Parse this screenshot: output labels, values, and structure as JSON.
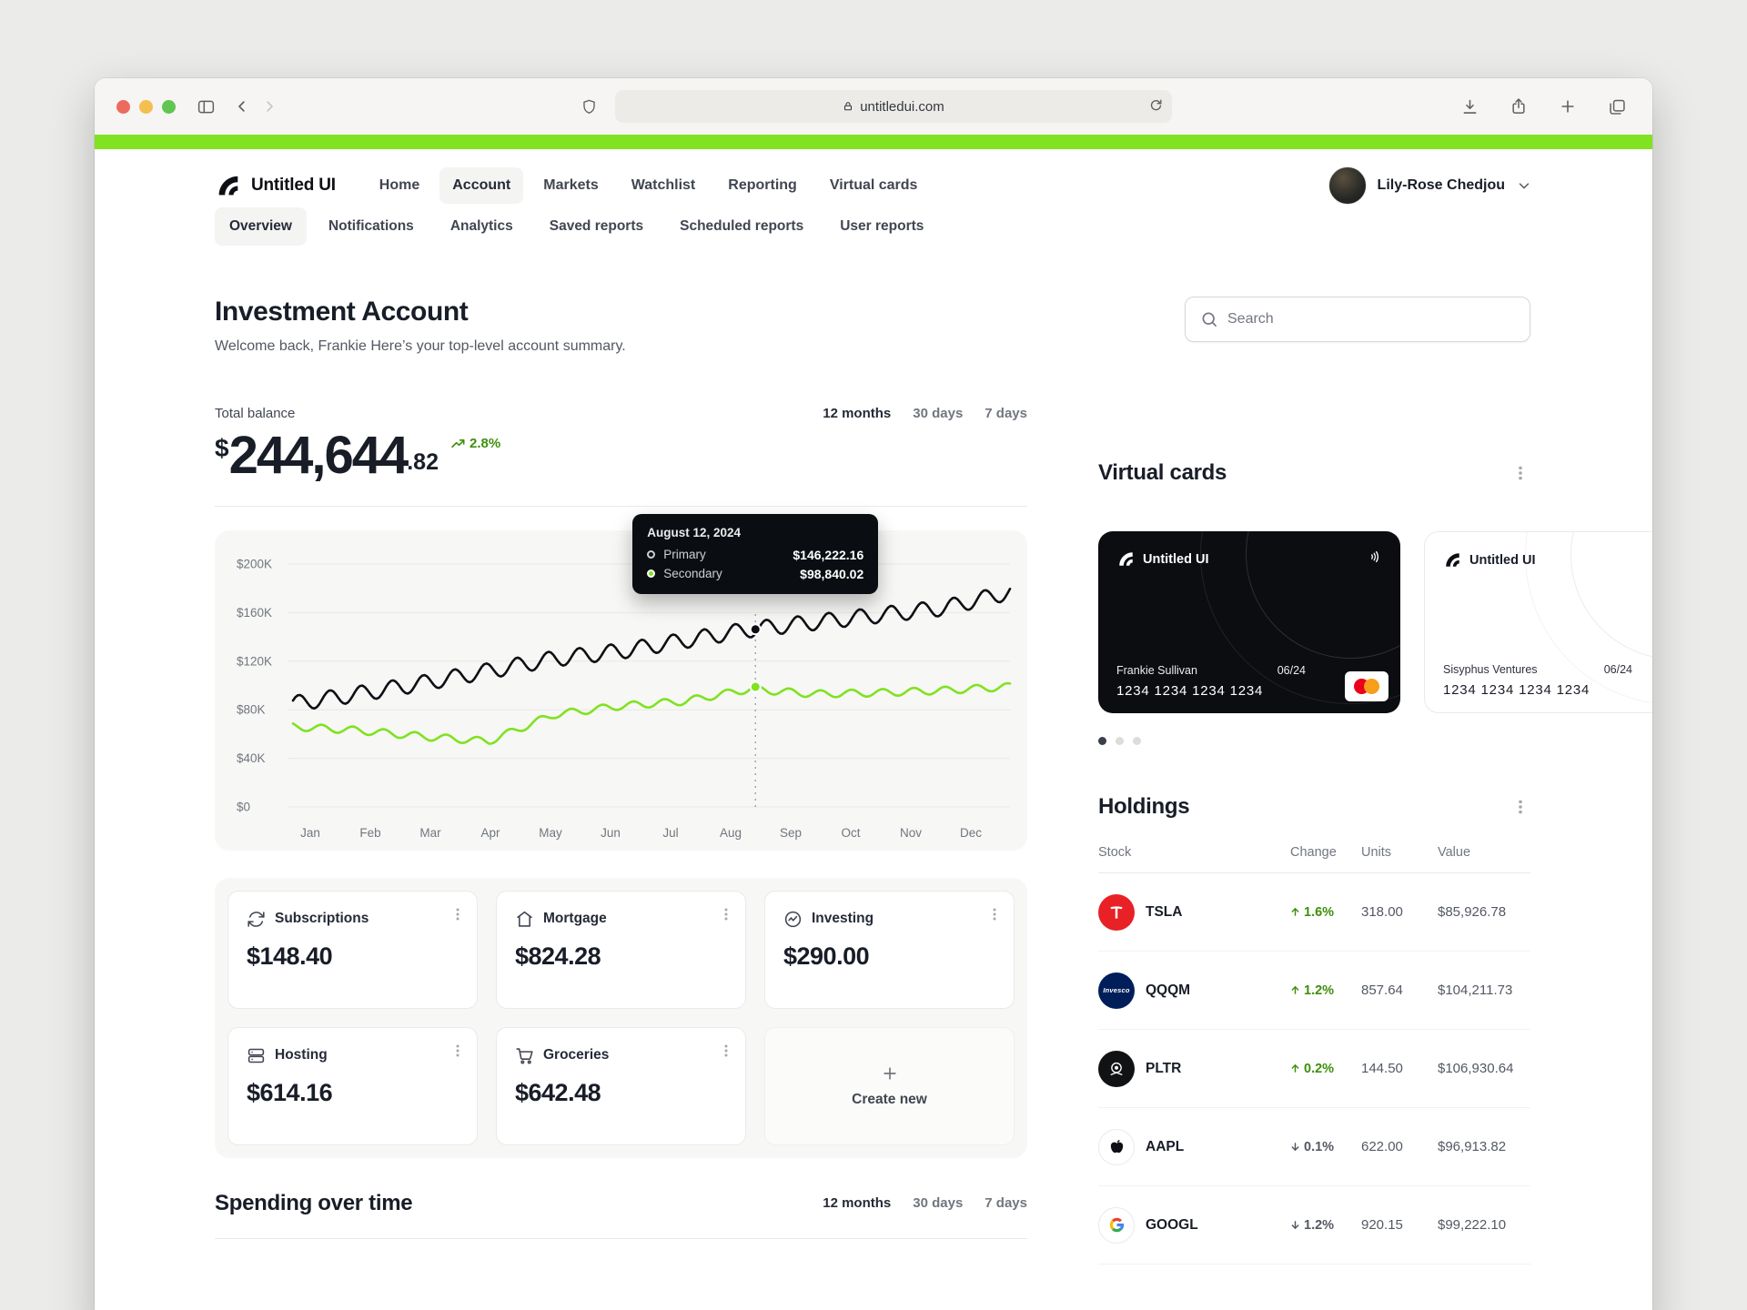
{
  "colors": {
    "accent": "#80E220",
    "positive": "#3E8F0B",
    "neutral": "#535862"
  },
  "browser": {
    "url": "untitledui.com"
  },
  "nav": {
    "brand": "Untitled UI",
    "items": [
      {
        "label": "Home"
      },
      {
        "label": "Account",
        "active": true
      },
      {
        "label": "Markets"
      },
      {
        "label": "Watchlist"
      },
      {
        "label": "Reporting"
      },
      {
        "label": "Virtual cards"
      }
    ],
    "user_name": "Lily-Rose Chedjou"
  },
  "subnav": [
    {
      "label": "Overview",
      "active": true
    },
    {
      "label": "Notifications"
    },
    {
      "label": "Analytics"
    },
    {
      "label": "Saved reports"
    },
    {
      "label": "Scheduled reports"
    },
    {
      "label": "User reports"
    }
  ],
  "header": {
    "title": "Investment Account",
    "subtitle": "Welcome back, Frankie Here’s your top-level account summary.",
    "search_placeholder": "Search"
  },
  "balance": {
    "label": "Total balance",
    "currency": "$",
    "whole": "244,644",
    "cents": ".82",
    "change": "2.8%",
    "ranges": [
      "12 months",
      "30 days",
      "7 days"
    ],
    "active_range": "12 months"
  },
  "chart_data": {
    "type": "line",
    "x_labels": [
      "Jan",
      "Feb",
      "Mar",
      "Apr",
      "May",
      "Jun",
      "Jul",
      "Aug",
      "Sep",
      "Oct",
      "Nov",
      "Dec"
    ],
    "y_ticks": [
      200000,
      160000,
      120000,
      80000,
      40000,
      0
    ],
    "y_tick_labels": [
      "$200K",
      "$160K",
      "$120K",
      "$80K",
      "$40K",
      "$0"
    ],
    "ylim": [
      0,
      200000
    ],
    "grid": true,
    "series": [
      {
        "name": "Primary",
        "color": "#0D0F14",
        "monthly_values": [
          85000,
          93000,
          102000,
          112000,
          122000,
          128000,
          137000,
          146000,
          152000,
          158000,
          164000,
          177000
        ]
      },
      {
        "name": "Secondary",
        "color": "#80E220",
        "monthly_values": [
          66000,
          63000,
          58000,
          54000,
          76000,
          83000,
          87000,
          97000,
          93000,
          94000,
          96000,
          99000
        ]
      }
    ],
    "wiggle": {
      "primary_amp": 6500,
      "secondary_amp": 3000,
      "cycles": 23
    },
    "tooltip": {
      "date": "August 12, 2024",
      "rows": [
        {
          "label": "Primary",
          "value": "$146,222.16",
          "y": 146222
        },
        {
          "label": "Secondary",
          "value": "$98,840.02",
          "y": 98840
        }
      ],
      "x_fraction": 0.645
    }
  },
  "summary": {
    "cards": [
      {
        "label": "Subscriptions",
        "value": "$148.40",
        "icon": "refresh-icon"
      },
      {
        "label": "Mortgage",
        "value": "$824.28",
        "icon": "home-icon"
      },
      {
        "label": "Investing",
        "value": "$290.00",
        "icon": "activity-icon"
      },
      {
        "label": "Hosting",
        "value": "$614.16",
        "icon": "server-icon"
      },
      {
        "label": "Groceries",
        "value": "$642.48",
        "icon": "cart-icon"
      }
    ],
    "create_label": "Create new"
  },
  "spending": {
    "title": "Spending over time",
    "ranges": [
      "12 months",
      "30 days",
      "7 days"
    ],
    "active_range": "12 months"
  },
  "virtual_cards": {
    "title": "Virtual cards",
    "cards": [
      {
        "brand": "Untitled UI",
        "holder": "Frankie Sullivan",
        "expiry": "06/24",
        "number": "1234 1234 1234 1234",
        "theme": "dark"
      },
      {
        "brand": "Untitled UI",
        "holder": "Sisyphus Ventures",
        "expiry": "06/24",
        "number": "1234 1234 1234 1234",
        "theme": "light"
      }
    ]
  },
  "holdings": {
    "title": "Holdings",
    "columns": {
      "stock": "Stock",
      "change": "Change",
      "units": "Units",
      "value": "Value"
    },
    "rows": [
      {
        "ticker": "TSLA",
        "change": "1.6%",
        "dir": "up",
        "units": "318.00",
        "value": "$85,926.78"
      },
      {
        "ticker": "QQQM",
        "change": "1.2%",
        "dir": "up",
        "units": "857.64",
        "value": "$104,211.73",
        "logo_label": "Invesco"
      },
      {
        "ticker": "PLTR",
        "change": "0.2%",
        "dir": "up",
        "units": "144.50",
        "value": "$106,930.64"
      },
      {
        "ticker": "AAPL",
        "change": "0.1%",
        "dir": "down",
        "units": "622.00",
        "value": "$96,913.82"
      },
      {
        "ticker": "GOOGL",
        "change": "1.2%",
        "dir": "down",
        "units": "920.15",
        "value": "$99,222.10"
      }
    ]
  }
}
